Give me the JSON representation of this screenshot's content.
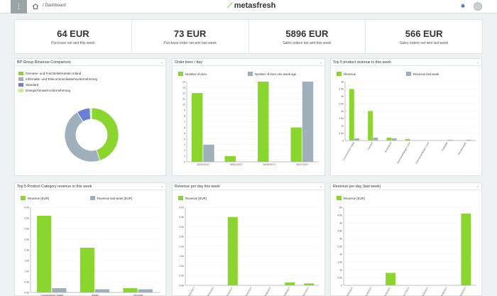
{
  "topbar": {
    "menu_icon": "grid-icon",
    "breadcrumb": "/ Dashboard",
    "logo": "metasfresh"
  },
  "kpis": [
    {
      "value": "64 EUR",
      "caption": "Purchase net amt this week"
    },
    {
      "value": "73 EUR",
      "caption": "Purchase order net amt last week"
    },
    {
      "value": "5896 EUR",
      "caption": "Sales orders net amt this week"
    },
    {
      "value": "566 EUR",
      "caption": "Sales orders net amt last week"
    }
  ],
  "colors": {
    "green": "#8ad52e",
    "gray": "#9fb0ba",
    "blue": "#6b7fd6",
    "lightgreen": "#c9ec9c"
  },
  "cards": {
    "bp": {
      "title": "BP Group Revenue Comparison",
      "legend": [
        "Gemüse- und Früchtelieferanten Inland",
        "Informatik- und Telecommunikationsunternehmung",
        "Standard",
        "Energie/Umwelt-Unternehmung"
      ]
    },
    "orders": {
      "title": "Order lines / day",
      "legend": [
        "Number of docs",
        "Number of docs one week ago"
      ]
    },
    "top5p": {
      "title": "Top 5 product revenue in this week",
      "legend": [
        "Revenue",
        "Revenue last week"
      ]
    },
    "top5c": {
      "title": "Top 5 Product Category revenue in this week",
      "legend": [
        "Revenue [EUR]",
        "Revenue last week [EUR]"
      ]
    },
    "rev": {
      "title": "Revenue per day this week",
      "legend": [
        "Revenue [EUR]"
      ]
    },
    "revlw": {
      "title": "Revenue per day (last week)",
      "legend": [
        "Revenue [EUR]"
      ]
    }
  },
  "chart_data": [
    {
      "type": "pie",
      "title": "BP Group Revenue Comparison",
      "categories": [
        "Gemüse- und Früchtelieferanten Inland",
        "Informatik- und Telecommunikationsunternehmung",
        "Standard",
        "Energie/Umwelt-Unternehmung"
      ],
      "values": [
        45,
        46,
        8,
        1
      ]
    },
    {
      "type": "bar",
      "title": "Order lines / day",
      "categories": [
        "05/02/2017",
        "06/02/2017",
        "05/06/2017",
        "05/07/2017"
      ],
      "series": [
        {
          "name": "Number of docs",
          "values": [
            12,
            1,
            14,
            6
          ]
        },
        {
          "name": "Number of docs one week ago",
          "values": [
            3,
            0,
            0,
            14
          ]
        }
      ],
      "yticks": [
        "0",
        "1",
        "2",
        "3",
        "4",
        "5",
        "6",
        "7",
        "8",
        "9",
        "10",
        "11",
        "12",
        "13",
        "14"
      ],
      "ylim": [
        0,
        14
      ]
    },
    {
      "type": "bar",
      "title": "Top 5 product revenue in this week",
      "categories": [
        "Convenience-Salat",
        "Fenchel",
        "Rosenkohl",
        "Gemüseanfänger-Linie",
        "Gemüseanfänger-Linie",
        "Kopfsalat",
        "Tomatenmark"
      ],
      "series": [
        {
          "name": "Revenue",
          "values": [
            3.5,
            2.0,
            0.2,
            0.1,
            0,
            0,
            0
          ]
        },
        {
          "name": "Revenue last week",
          "values": [
            0.15,
            0.2,
            0.15,
            0,
            0,
            0.05,
            0.05
          ]
        }
      ],
      "yticks": [
        "0",
        "0.5k",
        "1k",
        "1.5k",
        "2k",
        "2.5k",
        "3k",
        "3.5k",
        "4k"
      ],
      "ylim": [
        0,
        4
      ]
    },
    {
      "type": "bar",
      "title": "Top 5 Product Category revenue in this week",
      "categories": [
        "Convenience Salate",
        "Salate",
        "Gemüse"
      ],
      "series": [
        {
          "name": "Revenue [EUR]",
          "values": [
            3.6,
            2.1,
            0.2
          ]
        },
        {
          "name": "Revenue last week [EUR]",
          "values": [
            0.2,
            0.15,
            0.15
          ]
        }
      ],
      "yticks": [
        "0.0k",
        "0.5k",
        "1.0k",
        "1.5k",
        "2.0k",
        "2.5k",
        "3.0k",
        "3.5k",
        "4.0k"
      ],
      "ylim": [
        0,
        4
      ]
    },
    {
      "type": "bar",
      "title": "Revenue per day this week",
      "categories": [
        "05/01/2017",
        "05/02/2017",
        "05/03/2017",
        "05/04/2017",
        "05/05/2017",
        "05/06/2017",
        "05/07/2017"
      ],
      "series": [
        {
          "name": "Revenue [EUR]",
          "values": [
            0,
            0,
            3.5,
            0,
            0,
            0.15,
            0.1
          ]
        }
      ],
      "yticks": [
        "0.0k",
        "0.5k",
        "1.0k",
        "1.5k",
        "2.0k",
        "2.5k",
        "3.0k",
        "3.5k",
        "4.0k"
      ],
      "ylim": [
        0,
        4
      ]
    },
    {
      "type": "bar",
      "title": "Revenue per day (last week)",
      "categories": [
        "04/24/2017",
        "04/25/2017",
        "04/26/2017",
        "04/27/2017",
        "04/28/2017",
        "04/29/2017",
        "04/30/2017"
      ],
      "series": [
        {
          "name": "Revenue [EUR]",
          "values": [
            0,
            0,
            0.8,
            0,
            0,
            0,
            4.6
          ]
        }
      ],
      "yticks": [
        "0",
        "0.5k",
        "1k",
        "1.5k",
        "2k",
        "2.5k",
        "3k",
        "3.5k",
        "4k",
        "4.5k",
        "5k"
      ],
      "ylim": [
        0,
        5
      ]
    }
  ]
}
